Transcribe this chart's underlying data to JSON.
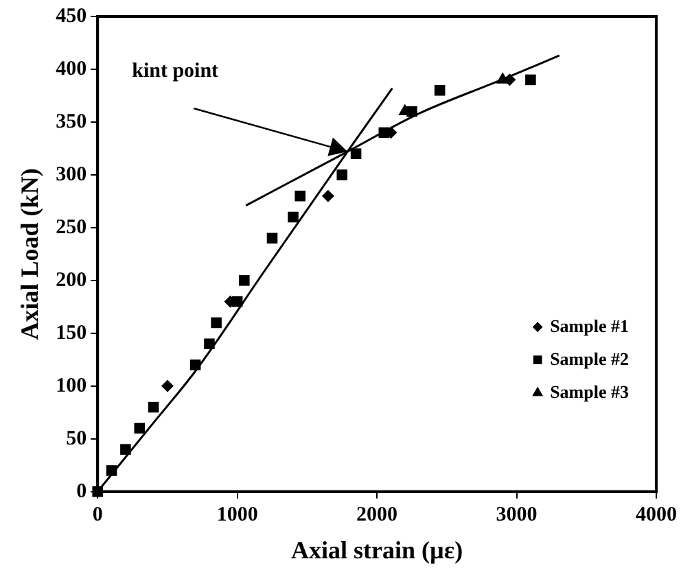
{
  "chart_data": {
    "type": "scatter",
    "xlabel": "Axial strain (µε)",
    "ylabel": "Axial Load (kN)",
    "xlim": [
      0,
      4000
    ],
    "xticks": [
      0,
      1000,
      2000,
      3000,
      4000
    ],
    "ylim": [
      0,
      450
    ],
    "yticks": [
      0,
      50,
      100,
      150,
      200,
      250,
      300,
      350,
      400,
      450
    ],
    "grid": false,
    "legend": "bottom right",
    "annotations": [
      {
        "text": "kint point",
        "x": 1789,
        "y": 322
      }
    ],
    "series": [
      {
        "name": "Sample #1",
        "color": "#000000",
        "marker": "diamond",
        "x": [
          500,
          950,
          1650,
          2100,
          2950
        ],
        "values": [
          100,
          180,
          280,
          340,
          390
        ]
      },
      {
        "name": "Sample #2",
        "color": "#000000",
        "marker": "square",
        "x": [
          0,
          100,
          200,
          300,
          400,
          700,
          800,
          850,
          1000,
          1050,
          1250,
          1400,
          1450,
          1750,
          1850,
          2050,
          2250,
          2450,
          3100
        ],
        "values": [
          0,
          20,
          40,
          60,
          80,
          120,
          140,
          160,
          180,
          200,
          240,
          260,
          280,
          300,
          320,
          340,
          360,
          380,
          390
        ]
      },
      {
        "name": "Sample #3",
        "color": "#000000",
        "marker": "triangle",
        "x": [
          2200,
          2900
        ],
        "values": [
          360,
          390
        ]
      },
      {
        "type": "line",
        "color": "#000000",
        "marker": "none",
        "line_style": "solid",
        "x": [
          0,
          380,
          705,
          1200,
          1789,
          2110
        ],
        "values": [
          0,
          62,
          115,
          210,
          322,
          382
        ]
      },
      {
        "type": "line",
        "color": "#000000",
        "marker": "none",
        "line_style": "solid",
        "x": [
          1062,
          1789,
          2300,
          2873,
          3306
        ],
        "values": [
          271,
          322,
          358,
          389,
          413
        ]
      }
    ]
  }
}
